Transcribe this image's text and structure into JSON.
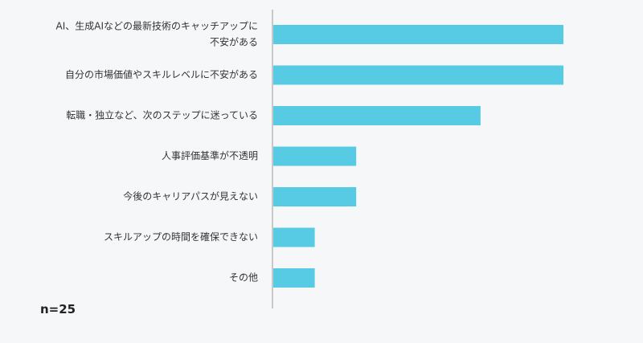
{
  "chart_data": {
    "type": "bar",
    "orientation": "horizontal",
    "categories": [
      [
        "AI、生成AIなどの最新技術のキャッチアップに",
        "不安がある"
      ],
      [
        "自分の市場価値やスキルレベルに不安がある"
      ],
      [
        "転職・独立など、次のステップに迷っている"
      ],
      [
        "人事評価基準が不透明"
      ],
      [
        "今後のキャリアパスが見えない"
      ],
      [
        "スキルアップの時間を確保できない"
      ],
      [
        "その他"
      ]
    ],
    "values": [
      7,
      7,
      5,
      2,
      2,
      1,
      1
    ],
    "xlim": [
      0,
      7
    ],
    "title": "",
    "xlabel": "",
    "ylabel": "",
    "grid": false,
    "legend": "none",
    "bar_color": "#56cbe3",
    "axis_color": "#999999"
  },
  "note": "n=25"
}
